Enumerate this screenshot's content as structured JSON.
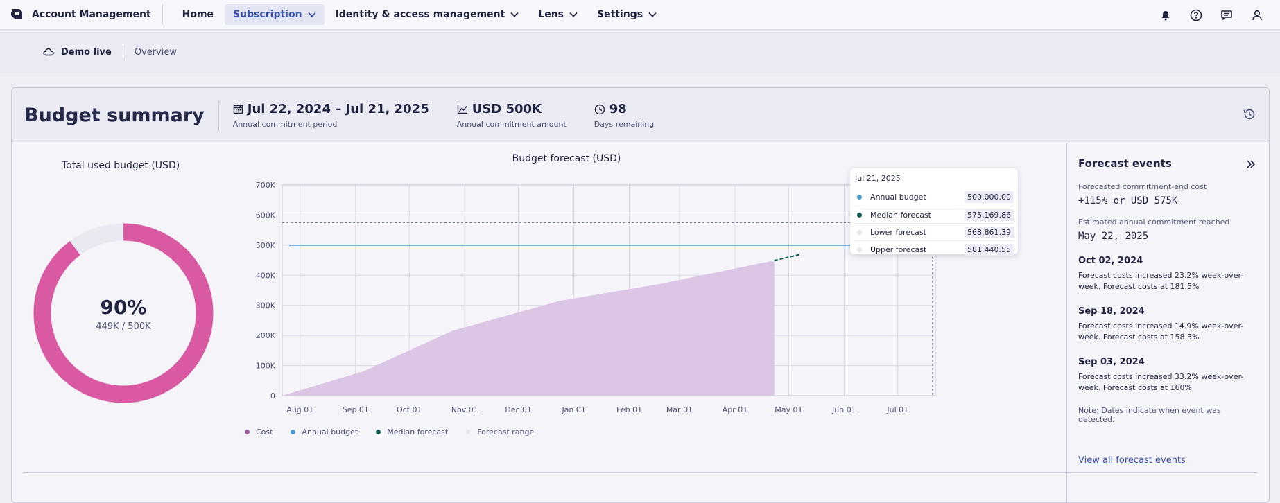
{
  "header": {
    "app_name": "Account Management",
    "nav": [
      {
        "label": "Home",
        "has_menu": false,
        "active": false
      },
      {
        "label": "Subscription",
        "has_menu": true,
        "active": true
      },
      {
        "label": "Identity & access management",
        "has_menu": true,
        "active": false
      },
      {
        "label": "Lens",
        "has_menu": true,
        "active": false
      },
      {
        "label": "Settings",
        "has_menu": true,
        "active": false
      }
    ],
    "icons": [
      "bell-icon",
      "help-icon",
      "chat-icon",
      "user-icon"
    ]
  },
  "subbar": {
    "environment": "Demo live",
    "breadcrumb": "Overview"
  },
  "summary": {
    "title": "Budget summary",
    "period_value": "Jul 22, 2024 – Jul 21, 2025",
    "period_label": "Annual commitment period",
    "amount_value": "USD 500K",
    "amount_label": "Annual commitment amount",
    "days_value": "98",
    "days_label": "Days remaining"
  },
  "donut": {
    "title": "Total used budget (USD)",
    "percent_text": "90%",
    "fraction_text": "449K / 500K",
    "used_fraction": 0.898,
    "colors": {
      "used": "#d95aa2",
      "remaining": "#e9e9f1"
    }
  },
  "chart_data": {
    "type": "area",
    "title": "Budget forecast (USD)",
    "y_ticks": [
      "0",
      "100K",
      "200K",
      "300K",
      "400K",
      "500K",
      "600K",
      "700K"
    ],
    "ylim": [
      0,
      700000
    ],
    "x_ticks": [
      "Aug 01",
      "Sep 01",
      "Oct 01",
      "Nov 01",
      "Dec 01",
      "Jan 01",
      "Feb 01",
      "Mar 01",
      "Apr 01",
      "May 01",
      "Jun 01",
      "Jul 01"
    ],
    "x_tick_days": [
      10,
      41,
      71,
      102,
      132,
      163,
      194,
      222,
      253,
      283,
      314,
      344
    ],
    "x_range_days": [
      0,
      365
    ],
    "cost_series": {
      "name": "Cost",
      "color": "#dcc6e6",
      "points": [
        [
          0,
          0
        ],
        [
          45,
          80000
        ],
        [
          95,
          215000
        ],
        [
          155,
          315000
        ],
        [
          210,
          370000
        ],
        [
          275,
          449000
        ]
      ]
    },
    "annual_budget": {
      "name": "Annual budget",
      "value": 500000,
      "color": "#3b82b8"
    },
    "median_forecast": {
      "name": "Median forecast",
      "color": "#0e5c4e",
      "points": [
        [
          275,
          449000
        ],
        [
          290,
          470000
        ]
      ],
      "end_value": 575169.86
    },
    "forecast_range": {
      "name": "Forecast range",
      "lower": 568861.39,
      "upper": 581440.55
    },
    "legend": [
      {
        "label": "Cost",
        "color": "#9b5a9a"
      },
      {
        "label": "Annual budget",
        "color": "#4a9ccc"
      },
      {
        "label": "Median forecast",
        "color": "#0e5c4e"
      },
      {
        "label": "Forecast range",
        "color": "#e6e6ee"
      }
    ]
  },
  "tooltip": {
    "date": "Jul 21, 2025",
    "rows": [
      {
        "label": "Annual budget",
        "value": "500,000.00",
        "color": "#4a9ccc"
      },
      {
        "label": "Median forecast",
        "value": "575,169.86",
        "color": "#0e5c4e"
      },
      {
        "label": "Lower forecast",
        "value": "568,861.39",
        "color": "#e6e6ee"
      },
      {
        "label": "Upper forecast",
        "value": "581,440.55",
        "color": "#e6e6ee"
      }
    ]
  },
  "side": {
    "title": "Forecast events",
    "end_cost_label": "Forecasted commitment-end cost",
    "end_cost_value": "+115% or USD 575K",
    "reached_label": "Estimated annual commitment reached",
    "reached_value": "May 22, 2025",
    "events": [
      {
        "date": "Oct 02, 2024",
        "text": "Forecast costs increased 23.2% week-over-week. Forecast costs at 181.5%"
      },
      {
        "date": "Sep 18, 2024",
        "text": "Forecast costs increased 14.9% week-over-week. Forecast costs at 158.3%"
      },
      {
        "date": "Sep 03, 2024",
        "text": "Forecast costs increased 33.2% week-over-week. Forecast costs at 160%"
      }
    ],
    "note": "Note: Dates indicate when event was detected.",
    "view_all": "View all forecast events"
  }
}
